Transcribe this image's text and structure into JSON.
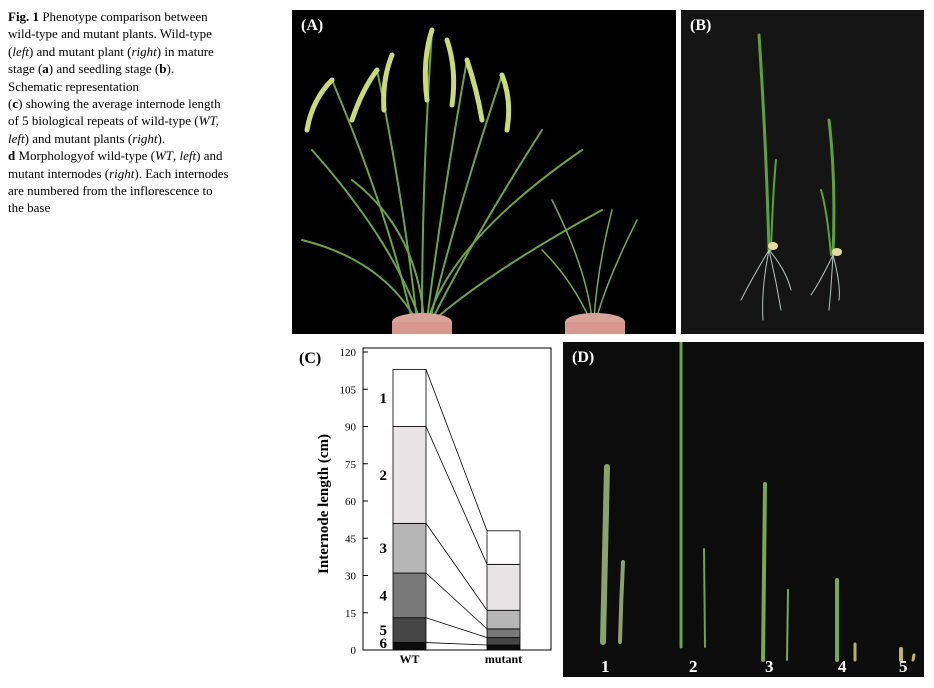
{
  "caption": {
    "fig": "Fig. 1",
    "t1": " Phenotype comparison between wild-type and mutant plants. Wild-type (",
    "left1": "left",
    "t2": ") and mutant plant (",
    "right1": "right",
    "t3": ") in mature stage (",
    "a": "a",
    "t4": ") and seedling stage (",
    "b": "b",
    "t5": "). Schematic representation",
    "c": "c",
    "t6": " showing the average internode length of 5 biological repeats of wild-type (",
    "wt1": "WT, left",
    "t7": ") and mutant plants (",
    "right2": "right",
    "t8": ").",
    "d": "d",
    "t9": " Morphologyof wild-type (",
    "wt2": "WT",
    "t10": ", ",
    "left2": "left",
    "t11": ") and mutant internodes (",
    "right3": "right",
    "t12": "). Each internodes are numbered from the inflorescence to the base"
  },
  "panels": {
    "a": "(A)",
    "b": "(B)",
    "c": "(C)",
    "d": "(D)"
  },
  "panel_d_numbers": [
    "1",
    "2",
    "3",
    "4",
    "5"
  ],
  "chart_data": {
    "type": "bar",
    "stacked": true,
    "ylabel": "Internode length  (cm)",
    "ylim": [
      0,
      120
    ],
    "yticks": [
      0,
      15,
      30,
      45,
      60,
      75,
      90,
      105,
      120
    ],
    "categories": [
      "WT",
      "mutant"
    ],
    "segment_labels": [
      "1",
      "2",
      "3",
      "4",
      "5",
      "6"
    ],
    "series": [
      {
        "values": [
          23,
          13.5
        ],
        "color": "#ffffff"
      },
      {
        "values": [
          39,
          18.5
        ],
        "color": "#e8e4e6"
      },
      {
        "values": [
          20,
          7.5
        ],
        "color": "#b7b6b7"
      },
      {
        "values": [
          18,
          3.5
        ],
        "color": "#7a797a"
      },
      {
        "values": [
          10,
          3
        ],
        "color": "#464546"
      },
      {
        "values": [
          3,
          2
        ],
        "color": "#0d0d0d"
      }
    ]
  }
}
